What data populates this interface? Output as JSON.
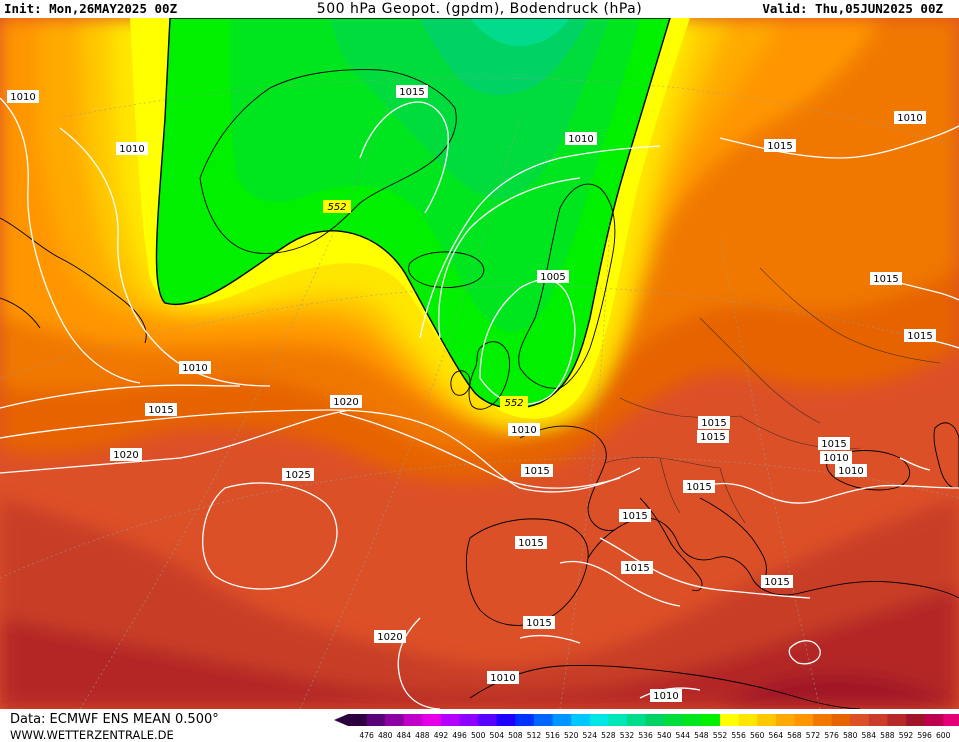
{
  "header": {
    "init": "Init: Mon,26MAY2025 00Z",
    "title": "500 hPa Geopot. (gpdm), Bodendruck (hPa)",
    "valid": "Valid: Thu,05JUN2025 00Z"
  },
  "footer": {
    "source": "Data: ECMWF ENS MEAN 0.500°",
    "website": "WWW.WETTERZENTRALE.DE"
  },
  "legend": {
    "ticks": [
      "476",
      "480",
      "484",
      "488",
      "492",
      "496",
      "500",
      "504",
      "508",
      "512",
      "516",
      "520",
      "524",
      "528",
      "532",
      "536",
      "540",
      "544",
      "548",
      "552",
      "556",
      "560",
      "564",
      "568",
      "572",
      "576",
      "580",
      "584",
      "588",
      "592",
      "596",
      "600"
    ],
    "colors": [
      "#2b0040",
      "#5a0078",
      "#8a00a0",
      "#c000c8",
      "#e600e6",
      "#b400ff",
      "#8c00ff",
      "#5a00ff",
      "#1e00ff",
      "#0032ff",
      "#0064ff",
      "#0096ff",
      "#00c8ff",
      "#00e6e6",
      "#00e6b4",
      "#00dc8c",
      "#00d264",
      "#00dc3c",
      "#00e61e",
      "#00f000",
      "#ffff00",
      "#ffe600",
      "#ffc800",
      "#ffaa00",
      "#ff9600",
      "#f07800",
      "#e66400",
      "#dc5028",
      "#c83c28",
      "#b42828",
      "#a01428",
      "#be0050",
      "#e60078"
    ]
  },
  "geopotential_labels": [
    "552",
    "552"
  ],
  "isobar_labels": [
    "1010",
    "1010",
    "1015",
    "1010",
    "1010",
    "1015",
    "1010",
    "1005",
    "1010",
    "1015",
    "1020",
    "1015",
    "1020",
    "1010",
    "1015",
    "1025",
    "1015",
    "1015",
    "1015",
    "1015",
    "1015",
    "1015",
    "1015",
    "1010",
    "1015",
    "1015",
    "1020",
    "1015",
    "1010",
    "1010"
  ]
}
